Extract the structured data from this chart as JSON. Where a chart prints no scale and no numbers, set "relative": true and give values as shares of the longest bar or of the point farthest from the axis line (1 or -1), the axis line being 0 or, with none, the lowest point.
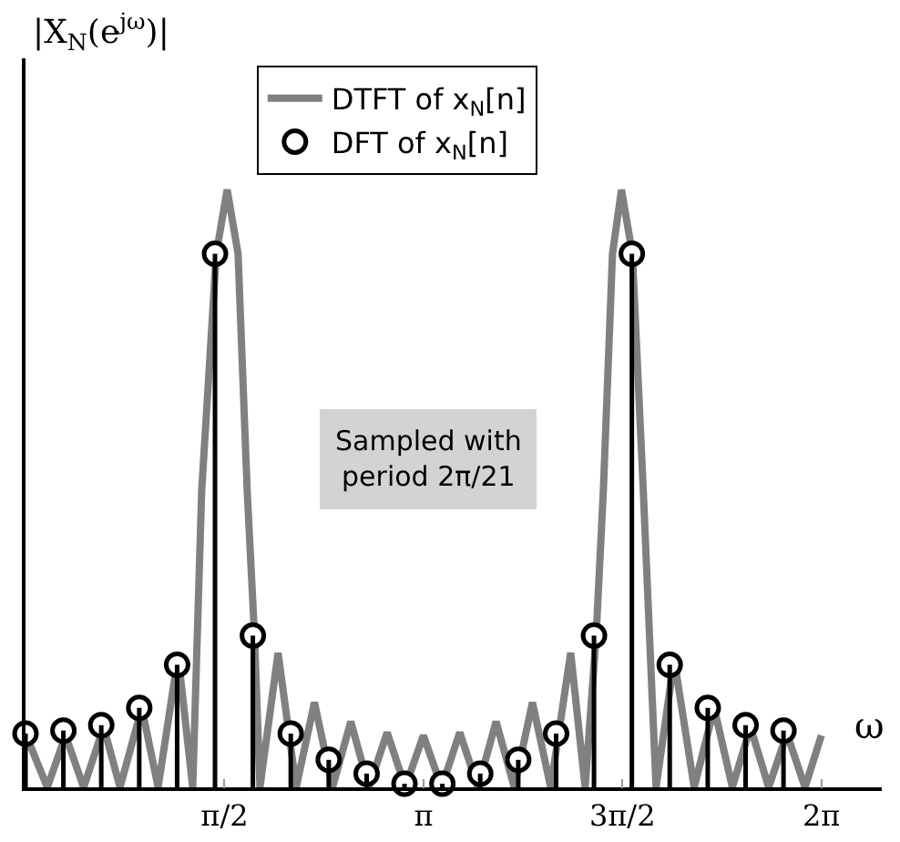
{
  "chart_data": {
    "type": "line",
    "relative": true,
    "ylabel": "|X$_{N}$(e$^{jω}$)|",
    "xlabel": "ω",
    "legend": "top",
    "xlim": [
      0,
      6.76
    ],
    "xticks": [
      {
        "value": 1.571,
        "label": "π/2"
      },
      {
        "value": 3.142,
        "label": "π"
      },
      {
        "value": 4.712,
        "label": "3π/2"
      },
      {
        "value": 6.283,
        "label": "2π"
      }
    ],
    "annotations": [
      "Sampled with\nperiod 2π/21"
    ],
    "series": [
      {
        "name": "DTFT of x$_{N}$[n]",
        "color": "#808080",
        "x": [
          0,
          0.172,
          0.316,
          0.459,
          0.617,
          0.746,
          0.918,
          1.047,
          1.205,
          1.32,
          1.391,
          1.506,
          1.592,
          1.678,
          1.75,
          1.808,
          1.851,
          1.994,
          2.137,
          2.281,
          2.424,
          2.568,
          2.711,
          2.855,
          2.998,
          3.141,
          3.285,
          3.428,
          3.572,
          3.715,
          3.859,
          4.002,
          4.146,
          4.304,
          4.418,
          4.505,
          4.562,
          4.634,
          4.705,
          4.791,
          4.877,
          4.978,
          5.121,
          5.279,
          5.437,
          5.58,
          5.723,
          5.867,
          6.011,
          6.154,
          6.283
        ],
        "values": [
          0.09,
          0,
          0.087,
          0,
          0.101,
          0,
          0.133,
          0,
          0.22,
          0,
          0.497,
          0.893,
          1,
          0.893,
          0.497,
          0.254,
          0,
          0.225,
          0,
          0.142,
          0,
          0.11,
          0,
          0.092,
          0,
          0.087,
          0,
          0.092,
          0,
          0.11,
          0,
          0.142,
          0,
          0.225,
          0,
          0.254,
          0.497,
          0.893,
          1,
          0.893,
          0.497,
          0,
          0.214,
          0,
          0.133,
          0,
          0.101,
          0,
          0.09,
          0,
          0.087
        ]
      },
      {
        "name": "DFT of x$_{N}$[n]",
        "type": "lollipop",
        "color": "#000000",
        "marker": "circle",
        "x": [
          0,
          0.299,
          0.598,
          0.898,
          1.197,
          1.496,
          1.795,
          2.094,
          2.394,
          2.693,
          2.992,
          3.291,
          3.59,
          3.89,
          4.189,
          4.488,
          4.787,
          5.086,
          5.386,
          5.685,
          5.984
        ],
        "values": [
          0.09,
          0.095,
          0.104,
          0.133,
          0.205,
          0.893,
          0.254,
          0.09,
          0.046,
          0.023,
          0.006,
          0.006,
          0.023,
          0.046,
          0.09,
          0.254,
          0.893,
          0.205,
          0.133,
          0.104,
          0.095
        ]
      }
    ]
  }
}
